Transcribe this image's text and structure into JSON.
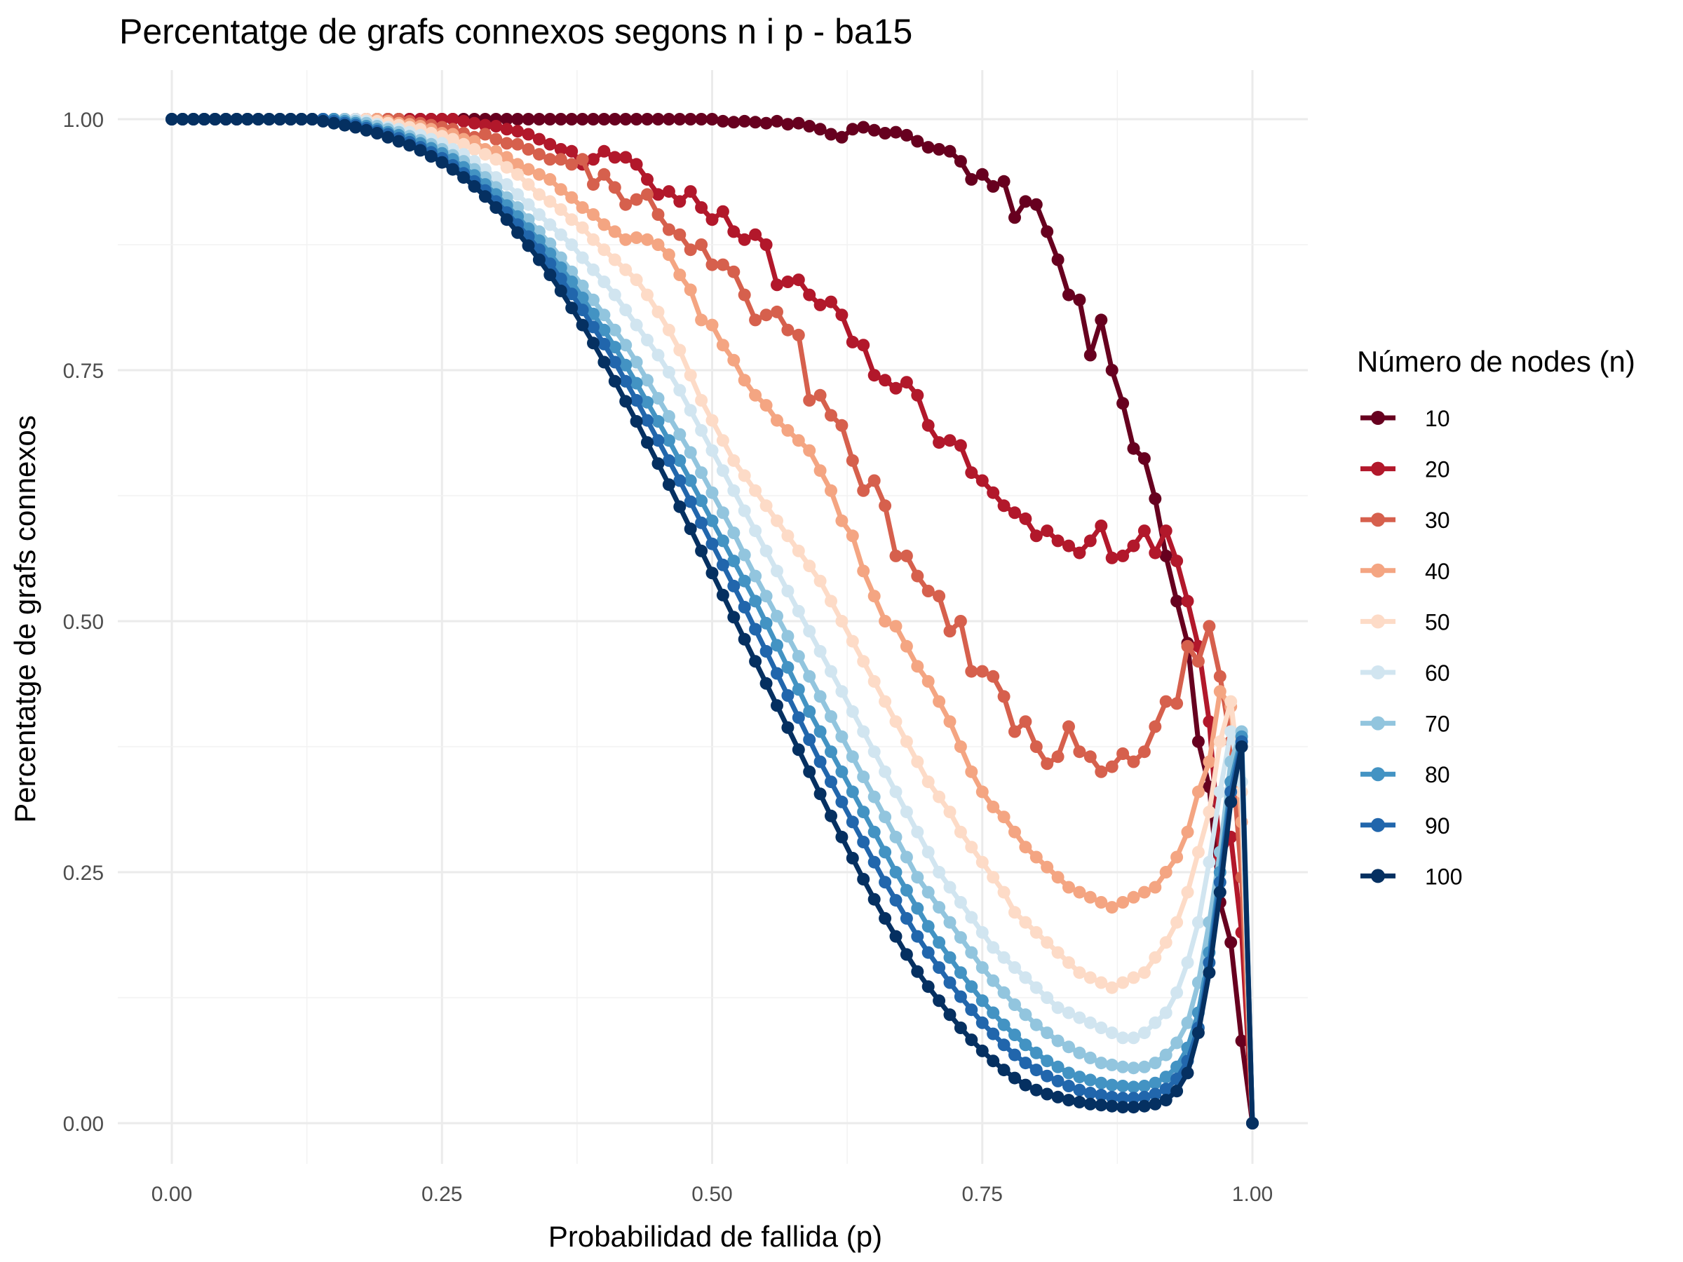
{
  "chart_data": {
    "type": "line",
    "title": "Percentatge de grafs connexos segons n i p - ba15",
    "xlabel": "Probabilidad de fallida (p)",
    "ylabel": "Percentatge de grafs connexos",
    "xlim": [
      0,
      1
    ],
    "ylim": [
      0,
      1
    ],
    "x_ticks": [
      "0.00",
      "0.25",
      "0.50",
      "0.75",
      "1.00"
    ],
    "y_ticks": [
      "0.00",
      "0.25",
      "0.50",
      "0.75",
      "1.00"
    ],
    "grid": true,
    "legend": {
      "title": "Número de nodes (n)",
      "position": "right"
    },
    "x": [
      0.0,
      0.01,
      0.02,
      0.03,
      0.04,
      0.05,
      0.06,
      0.07,
      0.08,
      0.09,
      0.1,
      0.11,
      0.12,
      0.13,
      0.14,
      0.15,
      0.16,
      0.17,
      0.18,
      0.19,
      0.2,
      0.21,
      0.22,
      0.23,
      0.24,
      0.25,
      0.26,
      0.27,
      0.28,
      0.29,
      0.3,
      0.31,
      0.32,
      0.33,
      0.34,
      0.35,
      0.36,
      0.37,
      0.38,
      0.39,
      0.4,
      0.41,
      0.42,
      0.43,
      0.44,
      0.45,
      0.46,
      0.47,
      0.48,
      0.49,
      0.5,
      0.51,
      0.52,
      0.53,
      0.54,
      0.55,
      0.56,
      0.57,
      0.58,
      0.59,
      0.6,
      0.61,
      0.62,
      0.63,
      0.64,
      0.65,
      0.66,
      0.67,
      0.68,
      0.69,
      0.7,
      0.71,
      0.72,
      0.73,
      0.74,
      0.75,
      0.76,
      0.77,
      0.78,
      0.79,
      0.8,
      0.81,
      0.82,
      0.83,
      0.84,
      0.85,
      0.86,
      0.87,
      0.88,
      0.89,
      0.9,
      0.91,
      0.92,
      0.93,
      0.94,
      0.95,
      0.96,
      0.97,
      0.98,
      0.99,
      1.0
    ],
    "series": [
      {
        "name": "10",
        "color": "#67001f",
        "values": [
          1,
          1,
          1,
          1,
          1,
          1,
          1,
          1,
          1,
          1,
          1,
          1,
          1,
          1,
          1,
          1,
          1,
          1,
          1,
          1,
          1,
          1,
          1,
          1,
          1,
          1,
          1,
          1,
          1,
          1,
          1,
          1,
          1,
          1,
          1,
          1,
          1,
          1,
          1,
          1,
          1,
          1,
          1,
          1,
          1,
          1,
          1,
          1,
          1,
          1,
          1,
          0.998,
          0.997,
          0.998,
          0.997,
          0.996,
          0.998,
          0.995,
          0.996,
          0.993,
          0.99,
          0.985,
          0.982,
          0.99,
          0.992,
          0.989,
          0.986,
          0.987,
          0.984,
          0.978,
          0.972,
          0.97,
          0.968,
          0.958,
          0.94,
          0.945,
          0.933,
          0.938,
          0.902,
          0.918,
          0.915,
          0.888,
          0.86,
          0.825,
          0.82,
          0.765,
          0.8,
          0.75,
          0.717,
          0.672,
          0.662,
          0.622,
          0.565,
          0.52,
          0.478,
          0.38,
          0.335,
          0.22,
          0.18,
          0.082,
          0.0
        ]
      },
      {
        "name": "20",
        "color": "#b2182b",
        "values": [
          1,
          1,
          1,
          1,
          1,
          1,
          1,
          1,
          1,
          1,
          1,
          1,
          1,
          1,
          1,
          1,
          1,
          1,
          1,
          1,
          1,
          1,
          1,
          1,
          1,
          1,
          1,
          0.998,
          0.996,
          0.994,
          0.993,
          0.99,
          0.988,
          0.985,
          0.98,
          0.975,
          0.97,
          0.968,
          0.955,
          0.96,
          0.968,
          0.962,
          0.962,
          0.955,
          0.94,
          0.925,
          0.928,
          0.918,
          0.928,
          0.912,
          0.9,
          0.908,
          0.888,
          0.88,
          0.885,
          0.875,
          0.835,
          0.838,
          0.84,
          0.825,
          0.815,
          0.818,
          0.805,
          0.778,
          0.775,
          0.745,
          0.74,
          0.732,
          0.738,
          0.725,
          0.695,
          0.678,
          0.68,
          0.675,
          0.648,
          0.64,
          0.628,
          0.615,
          0.608,
          0.602,
          0.585,
          0.59,
          0.58,
          0.575,
          0.568,
          0.58,
          0.595,
          0.563,
          0.565,
          0.575,
          0.59,
          0.568,
          0.59,
          0.56,
          0.52,
          0.475,
          0.4,
          0.265,
          0.285,
          0.19,
          0.0
        ]
      },
      {
        "name": "30",
        "color": "#d6604d",
        "values": [
          1,
          1,
          1,
          1,
          1,
          1,
          1,
          1,
          1,
          1,
          1,
          1,
          1,
          1,
          1,
          1,
          1,
          1,
          1,
          1,
          1,
          1,
          0.998,
          0.996,
          0.994,
          0.992,
          0.99,
          0.986,
          0.982,
          0.985,
          0.98,
          0.976,
          0.975,
          0.97,
          0.965,
          0.96,
          0.96,
          0.955,
          0.96,
          0.935,
          0.945,
          0.932,
          0.915,
          0.92,
          0.925,
          0.905,
          0.89,
          0.885,
          0.87,
          0.875,
          0.855,
          0.855,
          0.848,
          0.825,
          0.8,
          0.805,
          0.808,
          0.79,
          0.785,
          0.72,
          0.725,
          0.705,
          0.695,
          0.66,
          0.63,
          0.64,
          0.615,
          0.565,
          0.565,
          0.545,
          0.53,
          0.525,
          0.49,
          0.5,
          0.45,
          0.45,
          0.445,
          0.425,
          0.39,
          0.4,
          0.375,
          0.358,
          0.365,
          0.395,
          0.37,
          0.365,
          0.35,
          0.355,
          0.368,
          0.36,
          0.37,
          0.395,
          0.42,
          0.418,
          0.475,
          0.46,
          0.495,
          0.445,
          0.38,
          0.245,
          0.0
        ]
      },
      {
        "name": "40",
        "color": "#f4a582",
        "values": [
          1,
          1,
          1,
          1,
          1,
          1,
          1,
          1,
          1,
          1,
          1,
          1,
          1,
          1,
          1,
          1,
          1,
          1,
          1,
          1,
          0.998,
          0.996,
          0.995,
          0.993,
          0.99,
          0.986,
          0.985,
          0.98,
          0.978,
          0.97,
          0.968,
          0.962,
          0.955,
          0.95,
          0.945,
          0.94,
          0.93,
          0.922,
          0.912,
          0.905,
          0.895,
          0.888,
          0.88,
          0.882,
          0.88,
          0.875,
          0.865,
          0.845,
          0.83,
          0.8,
          0.795,
          0.775,
          0.76,
          0.74,
          0.725,
          0.715,
          0.7,
          0.69,
          0.68,
          0.67,
          0.65,
          0.63,
          0.6,
          0.585,
          0.55,
          0.525,
          0.5,
          0.495,
          0.475,
          0.455,
          0.44,
          0.42,
          0.4,
          0.375,
          0.35,
          0.33,
          0.315,
          0.305,
          0.29,
          0.275,
          0.265,
          0.255,
          0.245,
          0.235,
          0.23,
          0.225,
          0.22,
          0.215,
          0.22,
          0.225,
          0.23,
          0.235,
          0.25,
          0.265,
          0.29,
          0.33,
          0.36,
          0.43,
          0.415,
          0.3,
          0.0
        ]
      },
      {
        "name": "50",
        "color": "#fddbc7",
        "values": [
          1,
          1,
          1,
          1,
          1,
          1,
          1,
          1,
          1,
          1,
          1,
          1,
          1,
          1,
          1,
          1,
          1,
          1,
          1,
          0.998,
          0.996,
          0.994,
          0.992,
          0.99,
          0.986,
          0.983,
          0.98,
          0.975,
          0.97,
          0.965,
          0.96,
          0.952,
          0.945,
          0.935,
          0.925,
          0.918,
          0.91,
          0.9,
          0.892,
          0.88,
          0.87,
          0.86,
          0.85,
          0.84,
          0.825,
          0.808,
          0.79,
          0.77,
          0.745,
          0.72,
          0.7,
          0.68,
          0.66,
          0.645,
          0.63,
          0.615,
          0.6,
          0.585,
          0.57,
          0.555,
          0.54,
          0.52,
          0.5,
          0.48,
          0.46,
          0.44,
          0.42,
          0.4,
          0.38,
          0.36,
          0.34,
          0.325,
          0.31,
          0.29,
          0.275,
          0.26,
          0.245,
          0.23,
          0.21,
          0.2,
          0.19,
          0.18,
          0.17,
          0.16,
          0.15,
          0.145,
          0.14,
          0.135,
          0.14,
          0.145,
          0.15,
          0.165,
          0.18,
          0.2,
          0.23,
          0.27,
          0.31,
          0.38,
          0.42,
          0.33,
          0.0
        ]
      },
      {
        "name": "60",
        "color": "#d1e5f0",
        "values": [
          1,
          1,
          1,
          1,
          1,
          1,
          1,
          1,
          1,
          1,
          1,
          1,
          1,
          1,
          1,
          1,
          1,
          1,
          0.998,
          0.995,
          0.992,
          0.99,
          0.987,
          0.984,
          0.98,
          0.976,
          0.97,
          0.965,
          0.958,
          0.95,
          0.942,
          0.935,
          0.925,
          0.915,
          0.905,
          0.895,
          0.885,
          0.875,
          0.862,
          0.85,
          0.838,
          0.825,
          0.81,
          0.795,
          0.78,
          0.765,
          0.748,
          0.73,
          0.71,
          0.69,
          0.67,
          0.65,
          0.63,
          0.61,
          0.59,
          0.57,
          0.55,
          0.53,
          0.51,
          0.49,
          0.47,
          0.45,
          0.43,
          0.41,
          0.39,
          0.37,
          0.35,
          0.33,
          0.31,
          0.29,
          0.27,
          0.25,
          0.235,
          0.22,
          0.205,
          0.19,
          0.175,
          0.165,
          0.155,
          0.145,
          0.135,
          0.125,
          0.115,
          0.11,
          0.105,
          0.1,
          0.095,
          0.09,
          0.085,
          0.085,
          0.09,
          0.1,
          0.11,
          0.13,
          0.16,
          0.2,
          0.26,
          0.33,
          0.39,
          0.34,
          0.0
        ]
      },
      {
        "name": "70",
        "color": "#92c5de",
        "values": [
          1,
          1,
          1,
          1,
          1,
          1,
          1,
          1,
          1,
          1,
          1,
          1,
          1,
          1,
          1,
          1,
          1,
          0.998,
          0.996,
          0.993,
          0.99,
          0.987,
          0.983,
          0.979,
          0.975,
          0.97,
          0.964,
          0.958,
          0.95,
          0.942,
          0.932,
          0.922,
          0.912,
          0.9,
          0.888,
          0.876,
          0.862,
          0.848,
          0.834,
          0.82,
          0.805,
          0.79,
          0.775,
          0.758,
          0.74,
          0.722,
          0.704,
          0.686,
          0.668,
          0.648,
          0.628,
          0.608,
          0.588,
          0.566,
          0.545,
          0.525,
          0.505,
          0.485,
          0.465,
          0.445,
          0.425,
          0.405,
          0.385,
          0.365,
          0.345,
          0.325,
          0.305,
          0.285,
          0.265,
          0.245,
          0.23,
          0.215,
          0.2,
          0.185,
          0.17,
          0.155,
          0.142,
          0.13,
          0.118,
          0.108,
          0.098,
          0.09,
          0.082,
          0.076,
          0.07,
          0.065,
          0.06,
          0.058,
          0.056,
          0.055,
          0.056,
          0.06,
          0.068,
          0.08,
          0.1,
          0.14,
          0.2,
          0.27,
          0.36,
          0.39,
          0.0
        ]
      },
      {
        "name": "80",
        "color": "#4393c3",
        "values": [
          1,
          1,
          1,
          1,
          1,
          1,
          1,
          1,
          1,
          1,
          1,
          1,
          1,
          1,
          1,
          1,
          0.998,
          0.996,
          0.993,
          0.99,
          0.987,
          0.984,
          0.98,
          0.976,
          0.971,
          0.966,
          0.96,
          0.952,
          0.944,
          0.935,
          0.925,
          0.914,
          0.903,
          0.891,
          0.879,
          0.866,
          0.852,
          0.838,
          0.822,
          0.806,
          0.79,
          0.773,
          0.755,
          0.737,
          0.718,
          0.699,
          0.68,
          0.66,
          0.64,
          0.62,
          0.6,
          0.58,
          0.56,
          0.54,
          0.52,
          0.498,
          0.476,
          0.454,
          0.432,
          0.41,
          0.39,
          0.37,
          0.35,
          0.33,
          0.31,
          0.29,
          0.27,
          0.25,
          0.232,
          0.214,
          0.196,
          0.18,
          0.165,
          0.15,
          0.136,
          0.122,
          0.11,
          0.098,
          0.088,
          0.078,
          0.07,
          0.062,
          0.056,
          0.05,
          0.046,
          0.043,
          0.04,
          0.038,
          0.037,
          0.036,
          0.037,
          0.04,
          0.046,
          0.056,
          0.075,
          0.11,
          0.17,
          0.25,
          0.34,
          0.385,
          0.0
        ]
      },
      {
        "name": "90",
        "color": "#2166ac",
        "values": [
          1,
          1,
          1,
          1,
          1,
          1,
          1,
          1,
          1,
          1,
          1,
          1,
          1,
          1,
          1,
          0.998,
          0.996,
          0.994,
          0.991,
          0.988,
          0.985,
          0.981,
          0.977,
          0.972,
          0.967,
          0.961,
          0.954,
          0.946,
          0.938,
          0.929,
          0.918,
          0.907,
          0.895,
          0.883,
          0.87,
          0.856,
          0.841,
          0.826,
          0.81,
          0.793,
          0.776,
          0.758,
          0.739,
          0.72,
          0.7,
          0.68,
          0.66,
          0.64,
          0.619,
          0.598,
          0.577,
          0.556,
          0.535,
          0.514,
          0.492,
          0.47,
          0.448,
          0.426,
          0.404,
          0.382,
          0.36,
          0.34,
          0.32,
          0.3,
          0.28,
          0.26,
          0.24,
          0.222,
          0.204,
          0.186,
          0.17,
          0.155,
          0.14,
          0.126,
          0.113,
          0.1,
          0.089,
          0.078,
          0.068,
          0.06,
          0.053,
          0.047,
          0.042,
          0.037,
          0.033,
          0.03,
          0.028,
          0.026,
          0.025,
          0.025,
          0.026,
          0.029,
          0.034,
          0.044,
          0.062,
          0.095,
          0.16,
          0.24,
          0.33,
          0.38,
          0.0
        ]
      },
      {
        "name": "100",
        "color": "#053061",
        "values": [
          1,
          1,
          1,
          1,
          1,
          1,
          1,
          1,
          1,
          1,
          1,
          1,
          1,
          1,
          0.998,
          0.996,
          0.994,
          0.992,
          0.989,
          0.986,
          0.982,
          0.978,
          0.974,
          0.969,
          0.963,
          0.957,
          0.95,
          0.942,
          0.933,
          0.923,
          0.912,
          0.9,
          0.887,
          0.874,
          0.86,
          0.845,
          0.829,
          0.812,
          0.795,
          0.777,
          0.758,
          0.739,
          0.719,
          0.699,
          0.678,
          0.657,
          0.636,
          0.614,
          0.592,
          0.57,
          0.548,
          0.526,
          0.504,
          0.482,
          0.46,
          0.438,
          0.416,
          0.394,
          0.372,
          0.35,
          0.328,
          0.306,
          0.285,
          0.264,
          0.243,
          0.223,
          0.204,
          0.186,
          0.168,
          0.151,
          0.136,
          0.122,
          0.108,
          0.095,
          0.083,
          0.072,
          0.062,
          0.053,
          0.045,
          0.038,
          0.033,
          0.029,
          0.026,
          0.023,
          0.021,
          0.019,
          0.018,
          0.017,
          0.016,
          0.016,
          0.017,
          0.019,
          0.023,
          0.032,
          0.05,
          0.09,
          0.15,
          0.23,
          0.32,
          0.375,
          0.0
        ]
      }
    ]
  }
}
